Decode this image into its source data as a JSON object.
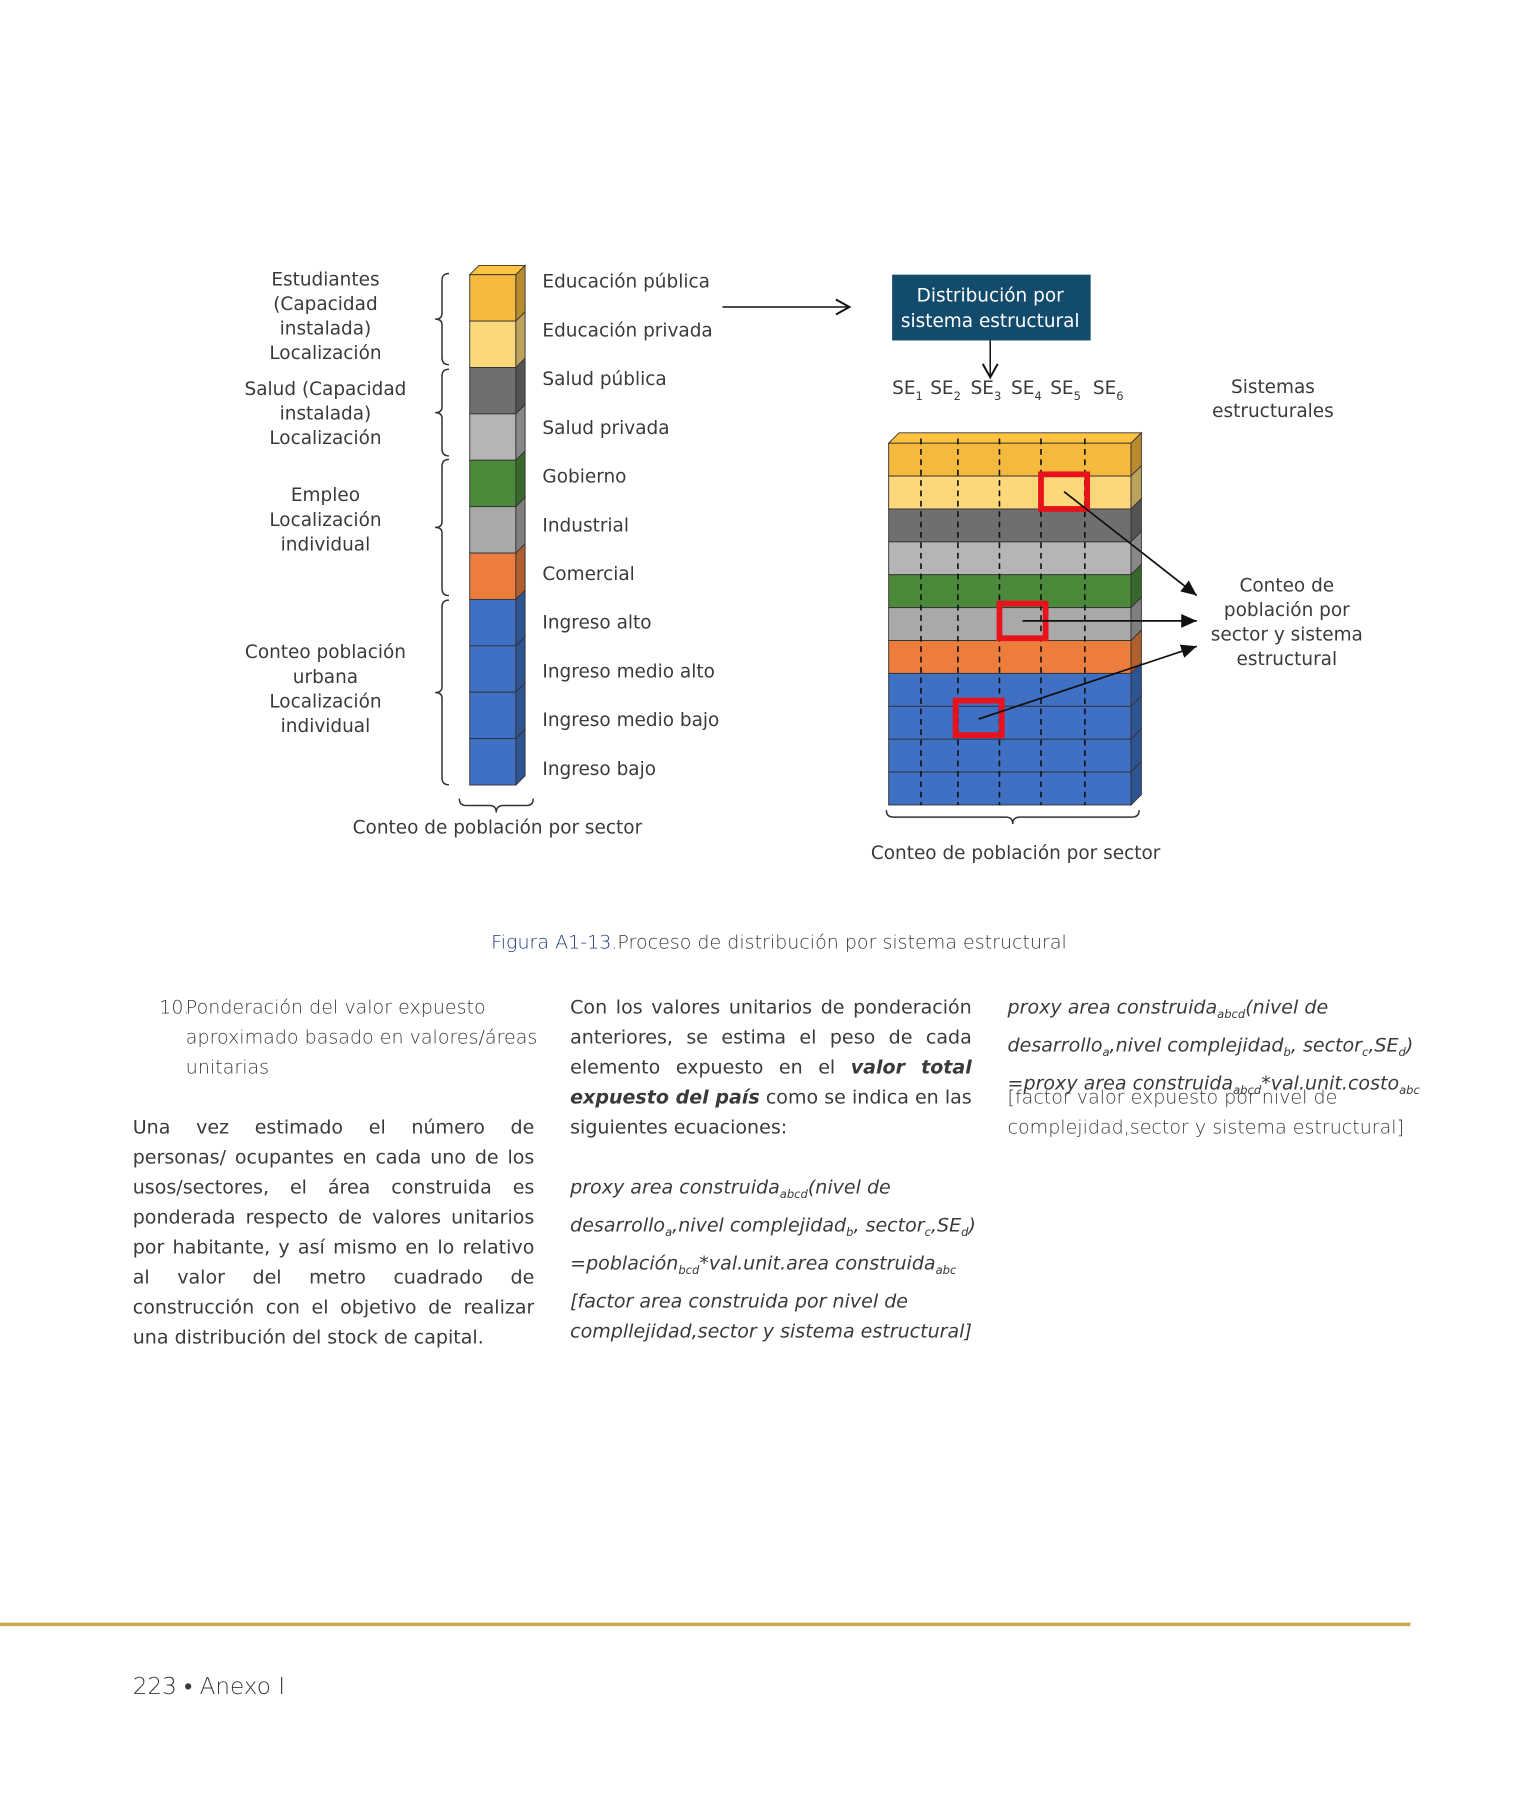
{
  "figure": {
    "groups": [
      [
        "Estudiantes",
        "(Capacidad",
        "instalada)",
        "Localización"
      ],
      [
        "Salud (Capacidad",
        "instalada)",
        "Localización"
      ],
      [
        "Empleo",
        "Localización",
        "individual"
      ],
      [
        "Conteo población",
        "urbana",
        "Localización",
        "individual"
      ]
    ],
    "sectors": [
      {
        "label": "Educación pública",
        "color": "#f5b93e"
      },
      {
        "label": "Educación privada",
        "color": "#fcd87a"
      },
      {
        "label": "Salud pública",
        "color": "#6f6f6f"
      },
      {
        "label": "Salud privada",
        "color": "#b5b5b5"
      },
      {
        "label": "Gobierno",
        "color": "#4b8a3b"
      },
      {
        "label": "Industrial",
        "color": "#a9a9a9"
      },
      {
        "label": "Comercial",
        "color": "#ec7d3d"
      },
      {
        "label": "Ingreso alto",
        "color": "#3f70c4"
      },
      {
        "label": "Ingreso medio alto",
        "color": "#3f70c4"
      },
      {
        "label": "Ingreso medio bajo",
        "color": "#3f70c4"
      },
      {
        "label": "Ingreso bajo",
        "color": "#3f70c4"
      }
    ],
    "left_footer": "Conteo de población por sector",
    "box": [
      "Distribución por",
      "sistema estructural"
    ],
    "se_labels": [
      [
        "SE",
        "1"
      ],
      [
        "SE",
        "2"
      ],
      [
        "SE",
        "3"
      ],
      [
        "SE",
        "4"
      ],
      [
        "SE",
        "5"
      ],
      [
        "SE",
        "6"
      ]
    ],
    "systems_label": [
      "Sistemas",
      "estructurales"
    ],
    "count_label": [
      "Conteo de",
      "población por",
      "sector y sistema",
      "estructural"
    ],
    "right_footer": "Conteo de población por sector"
  },
  "caption": {
    "label": "Figura A1-13.",
    "text": "Proceso de distribución por sistema estructural"
  },
  "columns": {
    "item": {
      "number": "10.",
      "lines": [
        "Ponderación del valor expuesto",
        "aproximado basado en valores/áreas",
        "unitarias"
      ]
    },
    "paragraph1": "Una vez estimado el número de personas/ ocupantes en cada uno de los usos/sectores, el área construida es ponderada respecto de valores unitarios por habitante, y así mismo en lo relativo al valor del metro cuadrado de construcción con el objetivo de realizar una distribución del stock de capital.",
    "paragraph2": [
      "Con los valores unitarios de ponderación anteriores, se estima el peso de cada elemento expuesto en el ",
      "valor total expuesto del país",
      " como se indica en las siguientes ecuaciones:"
    ],
    "equation1": [
      [
        "proxy area construida",
        "abcd",
        "(nivel de"
      ],
      [
        "desarrollo",
        "a",
        ",nivel complejidad",
        "b",
        ", sector",
        "c",
        ",SE",
        "d",
        ")"
      ],
      [
        "=población",
        "bcd",
        "*val.unit.area construida",
        "abc"
      ],
      [
        "[factor area construida por nivel de"
      ],
      [
        "compllejidad,sector y sistema estructural]"
      ]
    ],
    "equation2": [
      [
        "proxy area construida",
        "abcd",
        "(nivel de"
      ],
      [
        "desarrollo",
        "a",
        ",nivel complejidad",
        "b",
        ", sector",
        "c",
        ",SE",
        "d",
        ")"
      ],
      [
        "=proxy area construida",
        "abcd",
        "*val.unit.costo",
        "abc"
      ]
    ],
    "equation2_note": [
      "[factor valor expuesto por nivel de",
      "complejidad,sector y sistema estructural]"
    ]
  },
  "footer": {
    "page": "223",
    "separator": "•",
    "section": "Anexo I"
  }
}
